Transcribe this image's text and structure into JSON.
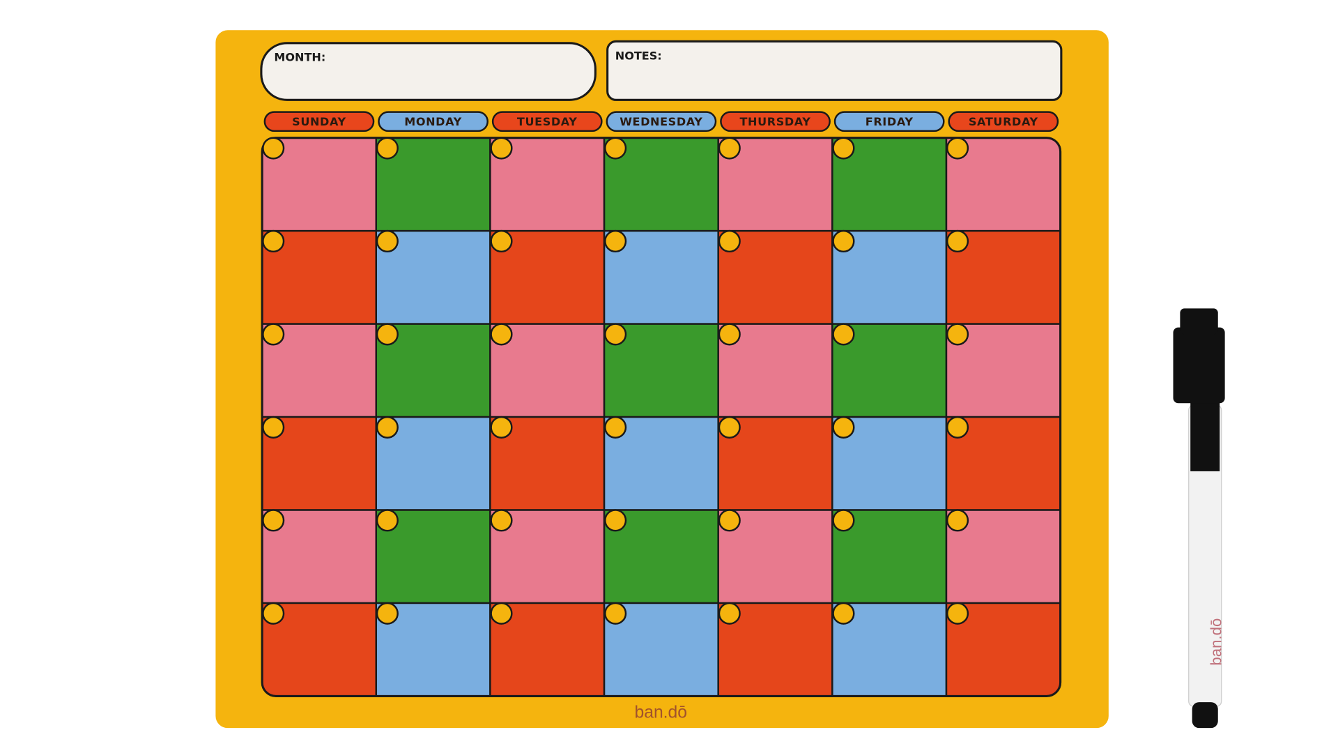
{
  "board": {
    "month_label": "MONTH:",
    "notes_label": "NOTES:",
    "days": [
      "SUNDAY",
      "MONDAY",
      "TUESDAY",
      "WEDNESDAY",
      "THURSDAY",
      "FRIDAY",
      "SATURDAY"
    ],
    "brand": "ban.dō"
  },
  "marker": {
    "brand": "ban.dō"
  }
}
